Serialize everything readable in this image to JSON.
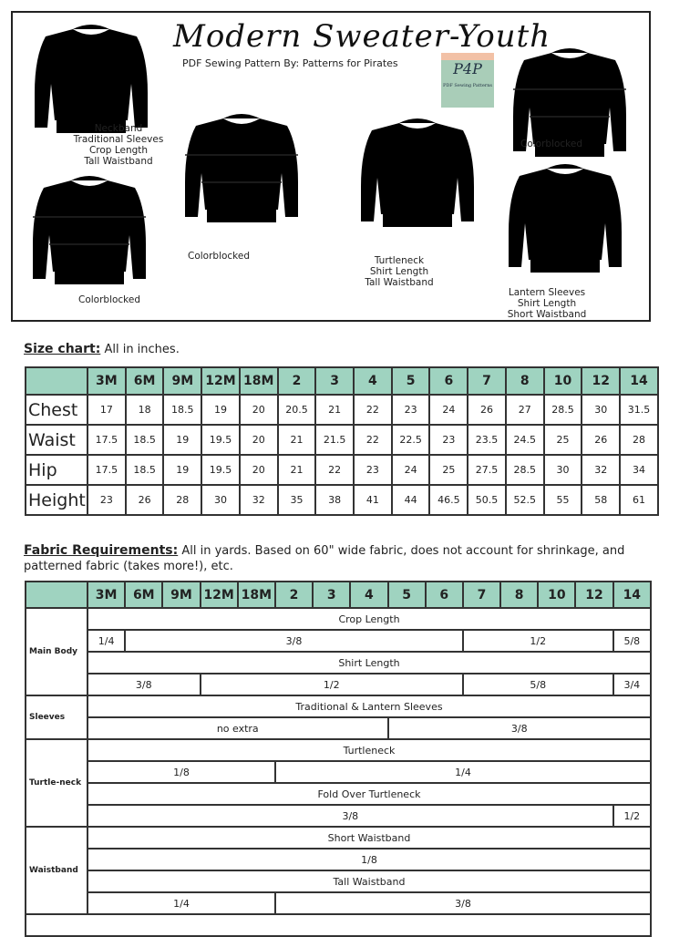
{
  "header": {
    "title": "Modern Sweater-Youth",
    "subtitle": "PDF Sewing Pattern  By: Patterns for Pirates",
    "logo_text": "P4P",
    "logo_sub": "PDF Sewing Patterns"
  },
  "views": [
    {
      "caption": [
        "Neckband",
        "Traditional Sleeves",
        "Crop Length",
        "Tall Waistband"
      ]
    },
    {
      "caption": [
        "Colorblocked"
      ]
    },
    {
      "caption": [
        "Colorblocked"
      ]
    },
    {
      "caption": [
        "Turtleneck",
        "Shirt Length",
        "Tall Waistband"
      ]
    },
    {
      "caption": [
        "Colorblocked"
      ]
    },
    {
      "caption": [
        "Lantern Sleeves",
        "Shirt Length",
        "Short Waistband"
      ]
    }
  ],
  "size_chart": {
    "label": "Size chart:",
    "note": "All in inches.",
    "sizes": [
      "3M",
      "6M",
      "9M",
      "12M",
      "18M",
      "2",
      "3",
      "4",
      "5",
      "6",
      "7",
      "8",
      "10",
      "12",
      "14"
    ],
    "rows": [
      {
        "name": "Chest",
        "values": [
          "17",
          "18",
          "18.5",
          "19",
          "20",
          "20.5",
          "21",
          "22",
          "23",
          "24",
          "26",
          "27",
          "28.5",
          "30",
          "31.5"
        ]
      },
      {
        "name": "Waist",
        "values": [
          "17.5",
          "18.5",
          "19",
          "19.5",
          "20",
          "21",
          "21.5",
          "22",
          "22.5",
          "23",
          "23.5",
          "24.5",
          "25",
          "26",
          "28"
        ]
      },
      {
        "name": "Hip",
        "values": [
          "17.5",
          "18.5",
          "19",
          "19.5",
          "20",
          "21",
          "22",
          "23",
          "24",
          "25",
          "27.5",
          "28.5",
          "30",
          "32",
          "34"
        ]
      },
      {
        "name": "Height",
        "values": [
          "23",
          "26",
          "28",
          "30",
          "32",
          "35",
          "38",
          "41",
          "44",
          "46.5",
          "50.5",
          "52.5",
          "55",
          "58",
          "61"
        ]
      }
    ]
  },
  "fabric": {
    "label": "Fabric Requirements:",
    "note": "All in yards. Based on 60\" wide fabric, does not account for shrinkage, and patterned fabric (takes more!), etc.",
    "groups": [
      {
        "name": "Main Body",
        "rows": [
          {
            "title": "Crop Length",
            "cells": [
              {
                "v": "1/4",
                "span": 1
              },
              {
                "v": "3/8",
                "span": 9
              },
              {
                "v": "1/2",
                "span": 4
              },
              {
                "v": "5/8",
                "span": 1
              }
            ]
          },
          {
            "title": "Shirt Length",
            "cells": [
              {
                "v": "3/8",
                "span": 3
              },
              {
                "v": "1/2",
                "span": 7
              },
              {
                "v": "5/8",
                "span": 4
              },
              {
                "v": "3/4",
                "span": 1
              }
            ]
          }
        ]
      },
      {
        "name": "Sleeves",
        "rows": [
          {
            "title": "Traditional & Lantern Sleeves",
            "cells": [
              {
                "v": "no extra",
                "span": 8
              },
              {
                "v": "3/8",
                "span": 7
              }
            ]
          }
        ]
      },
      {
        "name": "Turtle-neck",
        "rows": [
          {
            "title": "Turtleneck",
            "cells": [
              {
                "v": "1/8",
                "span": 5
              },
              {
                "v": "1/4",
                "span": 10
              }
            ]
          },
          {
            "title": "Fold Over Turtleneck",
            "cells": [
              {
                "v": "3/8",
                "span": 14
              },
              {
                "v": "1/2",
                "span": 1
              }
            ]
          }
        ]
      },
      {
        "name": "Waistband",
        "rows": [
          {
            "title": "Short Waistband",
            "cells": [
              {
                "v": "1/8",
                "span": 15
              }
            ]
          },
          {
            "title": "Tall Waistband",
            "cells": [
              {
                "v": "1/4",
                "span": 5
              },
              {
                "v": "3/8",
                "span": 10
              }
            ]
          }
        ]
      }
    ]
  }
}
